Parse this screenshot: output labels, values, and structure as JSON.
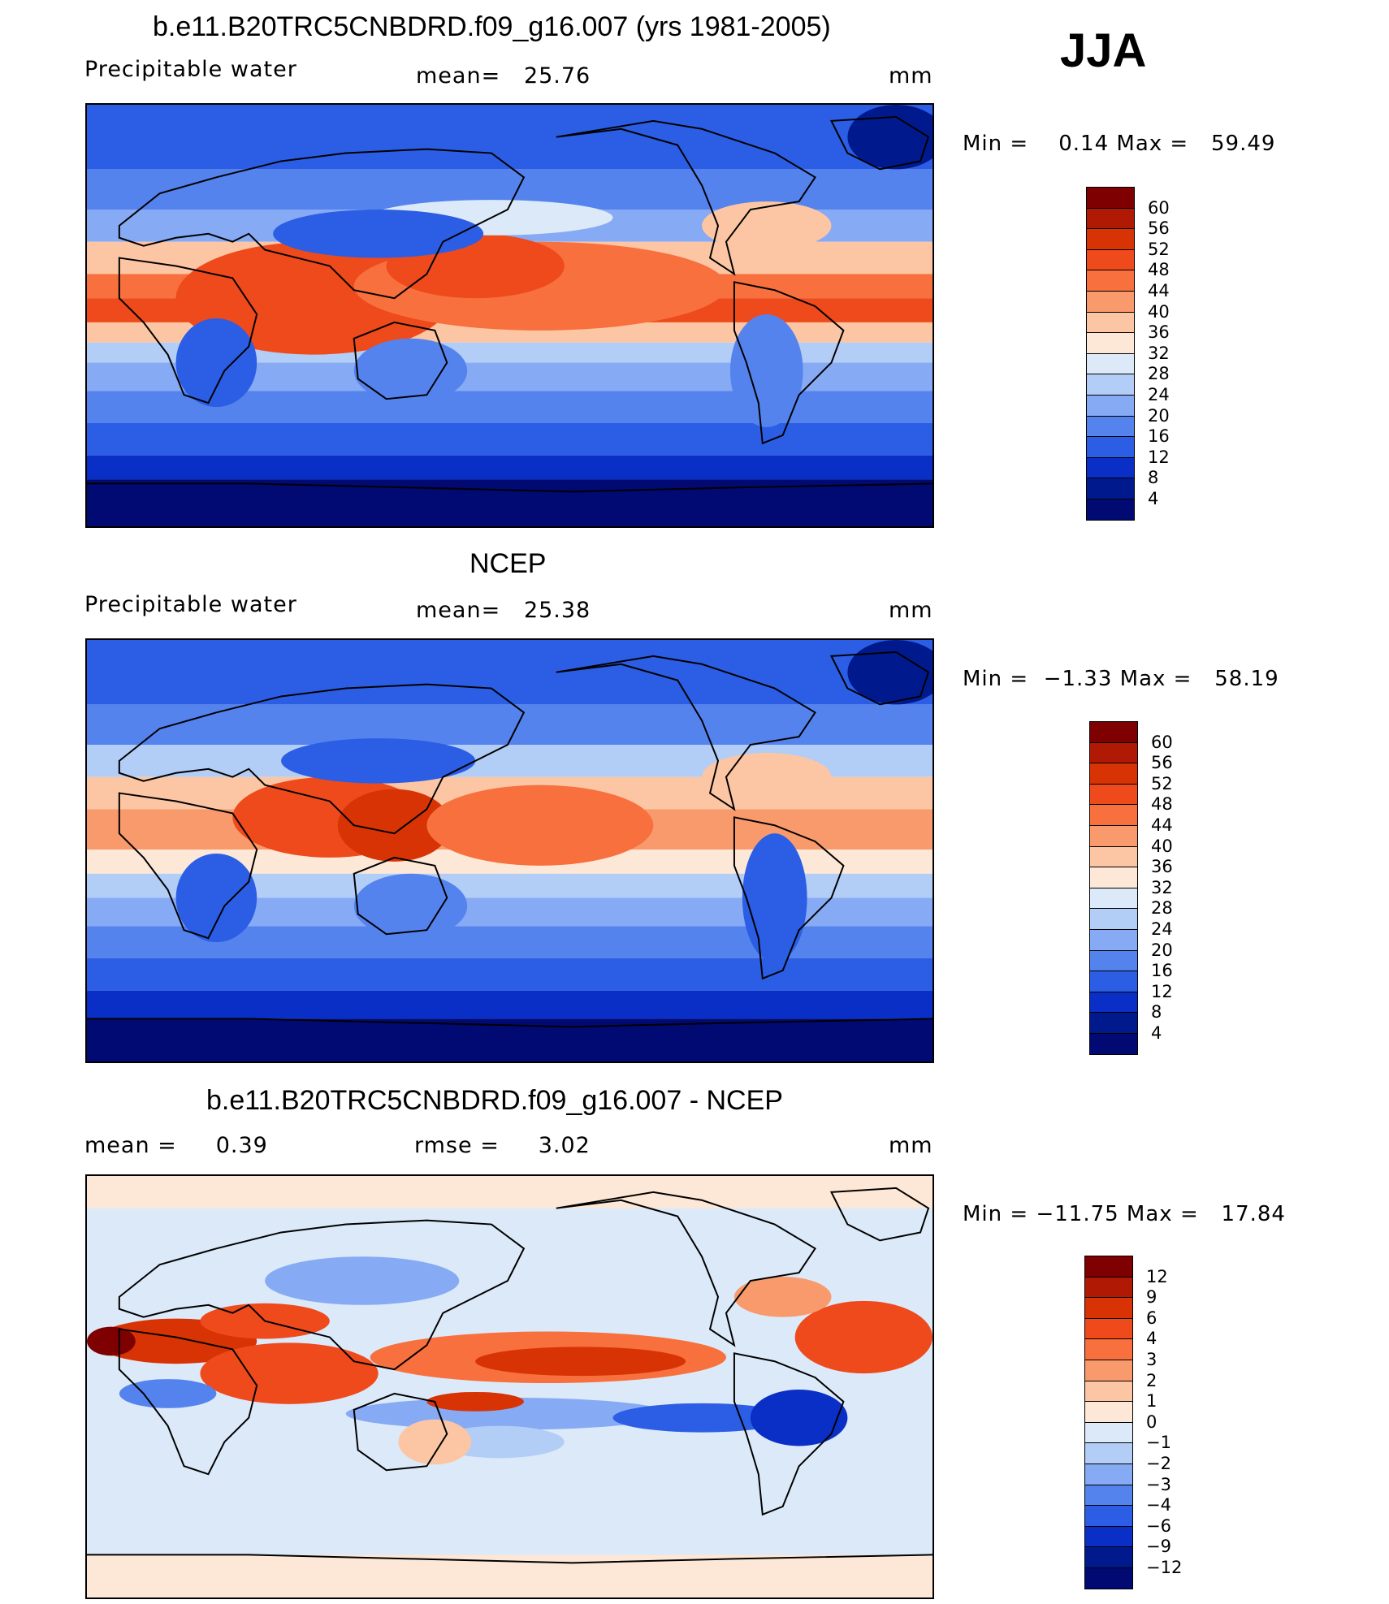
{
  "season": "JJA",
  "panels": [
    {
      "title": "b.e11.B20TRC5CNBDRD.f09_g16.007 (yrs 1981-2005)",
      "left_label": "Precipitable water",
      "center_label": "mean=   25.76",
      "units": "mm",
      "minmax": "Min =    0.14 Max =   59.49",
      "scale": "abs",
      "levels": [
        "60",
        "56",
        "52",
        "48",
        "44",
        "40",
        "36",
        "32",
        "28",
        "24",
        "20",
        "16",
        "12",
        "8",
        "4"
      ]
    },
    {
      "title": "NCEP",
      "left_label": "Precipitable water",
      "center_label": "mean=   25.38",
      "units": "mm",
      "minmax": "Min =  −1.33 Max =   58.19",
      "scale": "abs",
      "levels": [
        "60",
        "56",
        "52",
        "48",
        "44",
        "40",
        "36",
        "32",
        "28",
        "24",
        "20",
        "16",
        "12",
        "8",
        "4"
      ]
    },
    {
      "title": "b.e11.B20TRC5CNBDRD.f09_g16.007 - NCEP",
      "left_label": "mean =     0.39",
      "center_label": "rmse =     3.02",
      "units": "mm",
      "minmax": "Min = −11.75 Max =   17.84",
      "scale": "diff",
      "levels": [
        "12",
        "9",
        "6",
        "4",
        "3",
        "2",
        "1",
        "0",
        "−1",
        "−2",
        "−3",
        "−4",
        "−6",
        "−9",
        "−12"
      ]
    }
  ],
  "colors": {
    "abs": [
      "#7f0000",
      "#b01a05",
      "#d83305",
      "#ee4a1c",
      "#f7703d",
      "#f99a6c",
      "#fcc6a4",
      "#fde7d6",
      "#dbe9f8",
      "#b2cdf6",
      "#86aaf4",
      "#5583ee",
      "#2b5ee4",
      "#0a2fc6",
      "#001a8e",
      "#000a72"
    ],
    "diff": [
      "#7f0000",
      "#b01a05",
      "#d83305",
      "#ee4a1c",
      "#f7703d",
      "#f99a6c",
      "#fcc6a4",
      "#fde7d6",
      "#dbe9f8",
      "#b2cdf6",
      "#86aaf4",
      "#5583ee",
      "#2b5ee4",
      "#0a2fc6",
      "#001a8e",
      "#000a72"
    ]
  }
}
